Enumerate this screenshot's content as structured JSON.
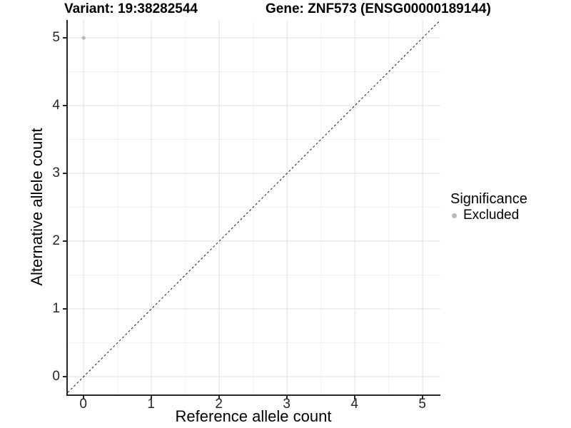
{
  "titles": {
    "variant": "Variant: 19:38282544",
    "gene": "Gene: ZNF573 (ENSG00000189144)"
  },
  "legend": {
    "title": "Significance",
    "items": [
      {
        "label": "Excluded",
        "color": "#b9b9b9"
      }
    ]
  },
  "chart_data": {
    "type": "scatter",
    "title_left": "Variant: 19:38282544",
    "title_right": "Gene: ZNF573 (ENSG00000189144)",
    "xlabel": "Reference allele count",
    "ylabel": "Alternative allele count",
    "xlim": [
      -0.25,
      5.25
    ],
    "ylim": [
      -0.25,
      5.25
    ],
    "x_major_ticks": [
      0,
      1,
      2,
      3,
      4,
      5
    ],
    "y_major_ticks": [
      0,
      1,
      2,
      3,
      4,
      5
    ],
    "x_minor_gridlines": [
      0.5,
      1.5,
      2.5,
      3.5,
      4.5
    ],
    "y_minor_gridlines": [
      0.5,
      1.5,
      2.5,
      3.5,
      4.5
    ],
    "grid": true,
    "legend_position": "right",
    "reference_line": {
      "type": "identity",
      "style": "dashed",
      "color": "#1a1a1a"
    },
    "series": [
      {
        "name": "Excluded",
        "color": "#b9b9b9",
        "points": [
          {
            "x": 0,
            "y": 5
          }
        ]
      }
    ],
    "colors": {
      "grid_major": "#e4e4e4",
      "grid_minor": "#f1f1f1",
      "axis_line": "#262626",
      "tick_text": "#262626",
      "point": "#b9b9b9"
    }
  }
}
